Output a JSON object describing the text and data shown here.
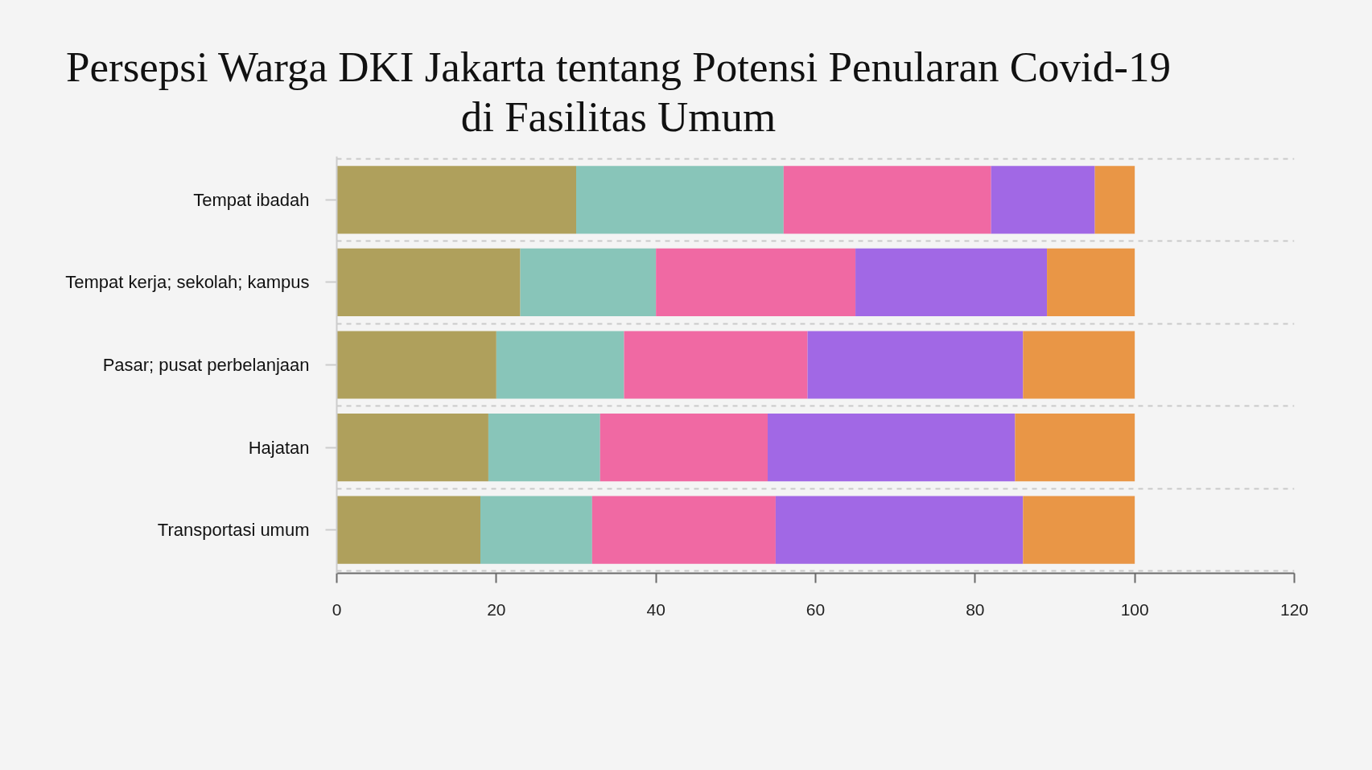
{
  "chart_data": {
    "type": "bar",
    "orientation": "horizontal",
    "stacked": true,
    "title": "Persepsi Warga DKI Jakarta tentang Potensi Penularan Covid-19 di Fasilitas Umum",
    "categories": [
      "Tempat ibadah",
      "Tempat kerja; sekolah; kampus",
      "Pasar; pusat perbelanjaan",
      "Hajatan",
      "Transportasi umum"
    ],
    "series": [
      {
        "color": "#afa05c",
        "values": [
          30,
          23,
          20,
          19,
          18
        ]
      },
      {
        "color": "#88c5b9",
        "values": [
          26,
          17,
          16,
          14,
          14
        ]
      },
      {
        "color": "#f069a3",
        "values": [
          26,
          25,
          23,
          21,
          23
        ]
      },
      {
        "color": "#a168e5",
        "values": [
          13,
          24,
          27,
          31,
          31
        ]
      },
      {
        "color": "#e99646",
        "values": [
          5,
          11,
          14,
          15,
          14
        ]
      }
    ],
    "xlim": [
      0,
      120
    ],
    "xticks": [
      0,
      20,
      40,
      60,
      80,
      100,
      120
    ],
    "grid": "y"
  }
}
